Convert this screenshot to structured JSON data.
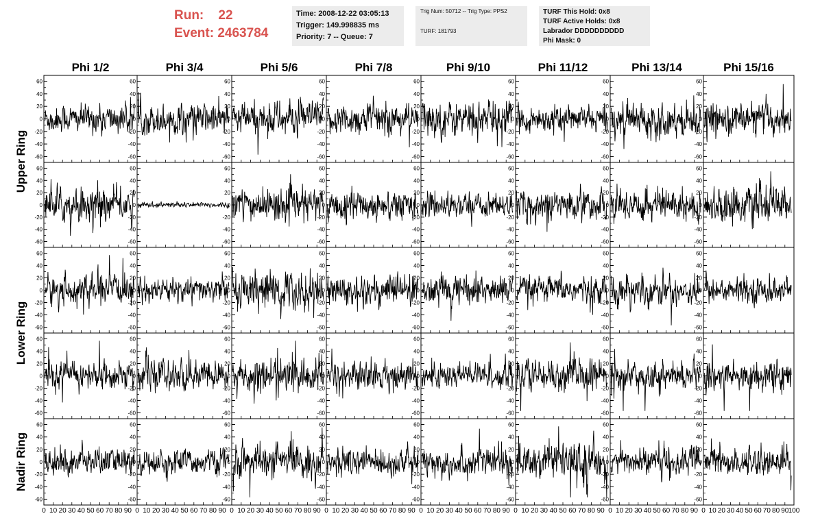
{
  "header": {
    "run_label": "Run:",
    "run_value": "22",
    "event_label": "Event:",
    "event_value": "2463784"
  },
  "time_box": {
    "time": "Time: 2008-12-22 03:05:13",
    "trigger": "Trigger: 149.998835 ms",
    "priority": "Priority: 7 -- Queue: 7"
  },
  "trig_box": {
    "trig": "Trig Num: 50712 -- Trig Type: PPS2",
    "turf": "TURF: 181793"
  },
  "turf_box": {
    "hold": "TURF This Hold: 0x8",
    "active": "TURF Active Holds: 0x8",
    "labrador": "Labrador DDDDDDDDDD",
    "phi_mask": "Phi Mask: 0"
  },
  "colors": {
    "header_red": "#d9534f",
    "box_bg": "#ececec",
    "trace": "#000000"
  },
  "chart_data": {
    "type": "line",
    "columns": [
      "Phi 1/2",
      "Phi 3/4",
      "Phi 5/6",
      "Phi 7/8",
      "Phi 9/10",
      "Phi 11/12",
      "Phi 13/14",
      "Phi 15/16"
    ],
    "row_labels": [
      "Upper Ring",
      "Lower Ring",
      "Nadir Ring"
    ],
    "rows": 5,
    "xlim": [
      0,
      100
    ],
    "ylim": [
      -65,
      65
    ],
    "x_ticks": [
      0,
      10,
      20,
      30,
      40,
      50,
      60,
      70,
      80,
      90,
      100
    ],
    "y_ticks": [
      -60,
      -40,
      -20,
      0,
      20,
      40,
      60
    ],
    "samples": 260,
    "amplitude": [
      [
        10,
        11,
        12,
        11,
        13,
        9,
        12,
        11
      ],
      [
        13,
        2,
        12,
        11,
        9,
        11,
        12,
        13
      ],
      [
        11,
        9,
        14,
        12,
        11,
        10,
        11,
        9
      ],
      [
        10,
        11,
        13,
        11,
        10,
        12,
        10,
        11
      ],
      [
        10,
        9,
        12,
        10,
        11,
        13,
        10,
        10
      ]
    ]
  }
}
